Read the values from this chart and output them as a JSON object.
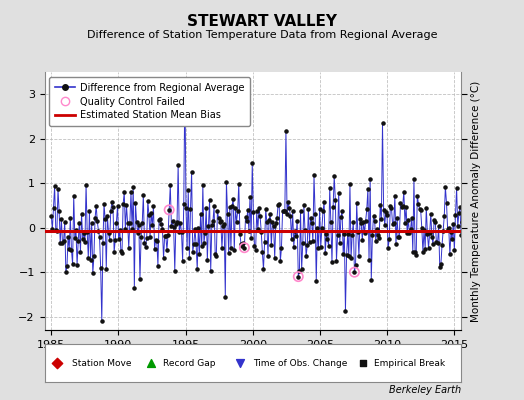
{
  "title": "STEWART VALLEY",
  "subtitle": "Difference of Station Temperature Data from Regional Average",
  "ylabel": "Monthly Temperature Anomaly Difference (°C)",
  "xlim": [
    1984.5,
    2015.5
  ],
  "ylim": [
    -2.3,
    3.5
  ],
  "yticks": [
    -2,
    -1,
    0,
    1,
    2,
    3
  ],
  "xticks": [
    1985,
    1990,
    1995,
    2000,
    2005,
    2010,
    2015
  ],
  "bias_value": -0.08,
  "line_color": "#3333cc",
  "dot_color": "#111111",
  "bias_color": "#cc0000",
  "qc_color": "#ff88cc",
  "bg_color": "#e0e0e0",
  "plot_bg_color": "#ffffff",
  "seed": 42,
  "n_points": 372,
  "start_year": 1985.0,
  "end_year": 2016.0,
  "qc_failed_indices": [
    105,
    172,
    220,
    270
  ],
  "footer": "Berkeley Earth",
  "title_fontsize": 11,
  "subtitle_fontsize": 8,
  "tick_fontsize": 8,
  "ylabel_fontsize": 7.5
}
